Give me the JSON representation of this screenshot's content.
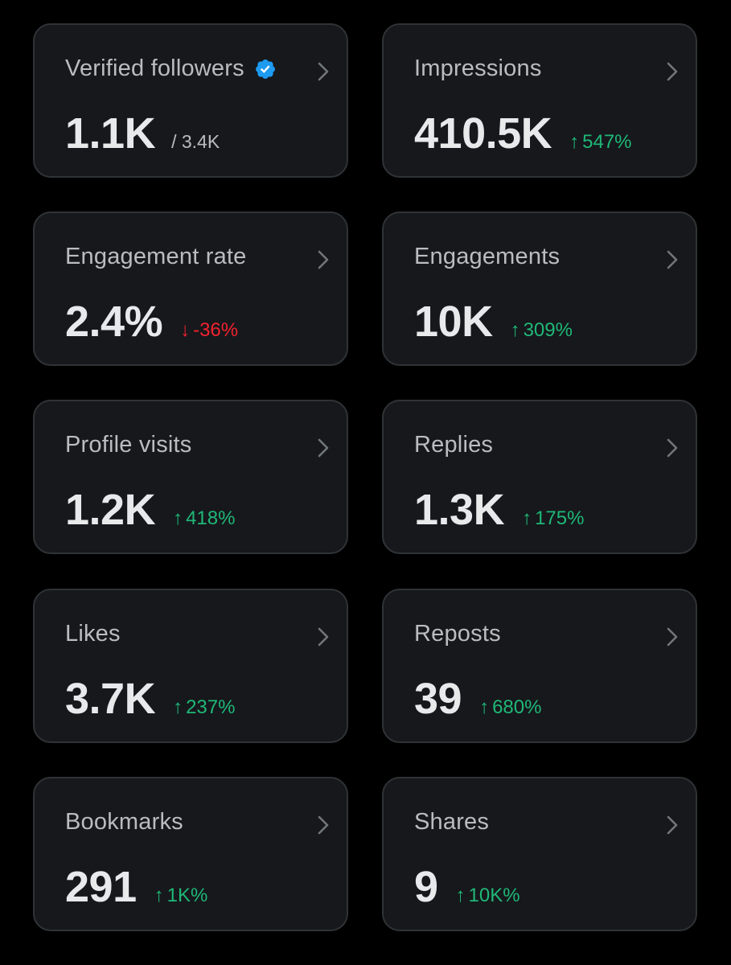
{
  "colors": {
    "background": "#000000",
    "card": "#16181c",
    "card_border": "#2f3336",
    "up": "#1fb877",
    "down": "#f4212e",
    "verified_badge": "#1d9bf0"
  },
  "icons": {
    "chevron": "chevron-right-icon",
    "verified": "verified-badge-icon",
    "up": "arrow-up-icon",
    "down": "arrow-down-icon"
  },
  "cards": [
    {
      "label": "Verified followers",
      "value": "1.1K",
      "sub": "/ 3.4K"
    },
    {
      "label": "Impressions",
      "value": "410.5K",
      "arrow": "↑",
      "change": "547%",
      "direction": "up"
    },
    {
      "label": "Engagement rate",
      "value": "2.4%",
      "arrow": "↓",
      "change": "-36%",
      "direction": "down"
    },
    {
      "label": "Engagements",
      "value": "10K",
      "arrow": "↑",
      "change": "309%",
      "direction": "up"
    },
    {
      "label": "Profile visits",
      "value": "1.2K",
      "arrow": "↑",
      "change": "418%",
      "direction": "up"
    },
    {
      "label": "Replies",
      "value": "1.3K",
      "arrow": "↑",
      "change": "175%",
      "direction": "up"
    },
    {
      "label": "Likes",
      "value": "3.7K",
      "arrow": "↑",
      "change": "237%",
      "direction": "up"
    },
    {
      "label": "Reposts",
      "value": "39",
      "arrow": "↑",
      "change": "680%",
      "direction": "up"
    },
    {
      "label": "Bookmarks",
      "value": "291",
      "arrow": "↑",
      "change": "1K%",
      "direction": "up"
    },
    {
      "label": "Shares",
      "value": "9",
      "arrow": "↑",
      "change": "10K%",
      "direction": "up"
    }
  ]
}
